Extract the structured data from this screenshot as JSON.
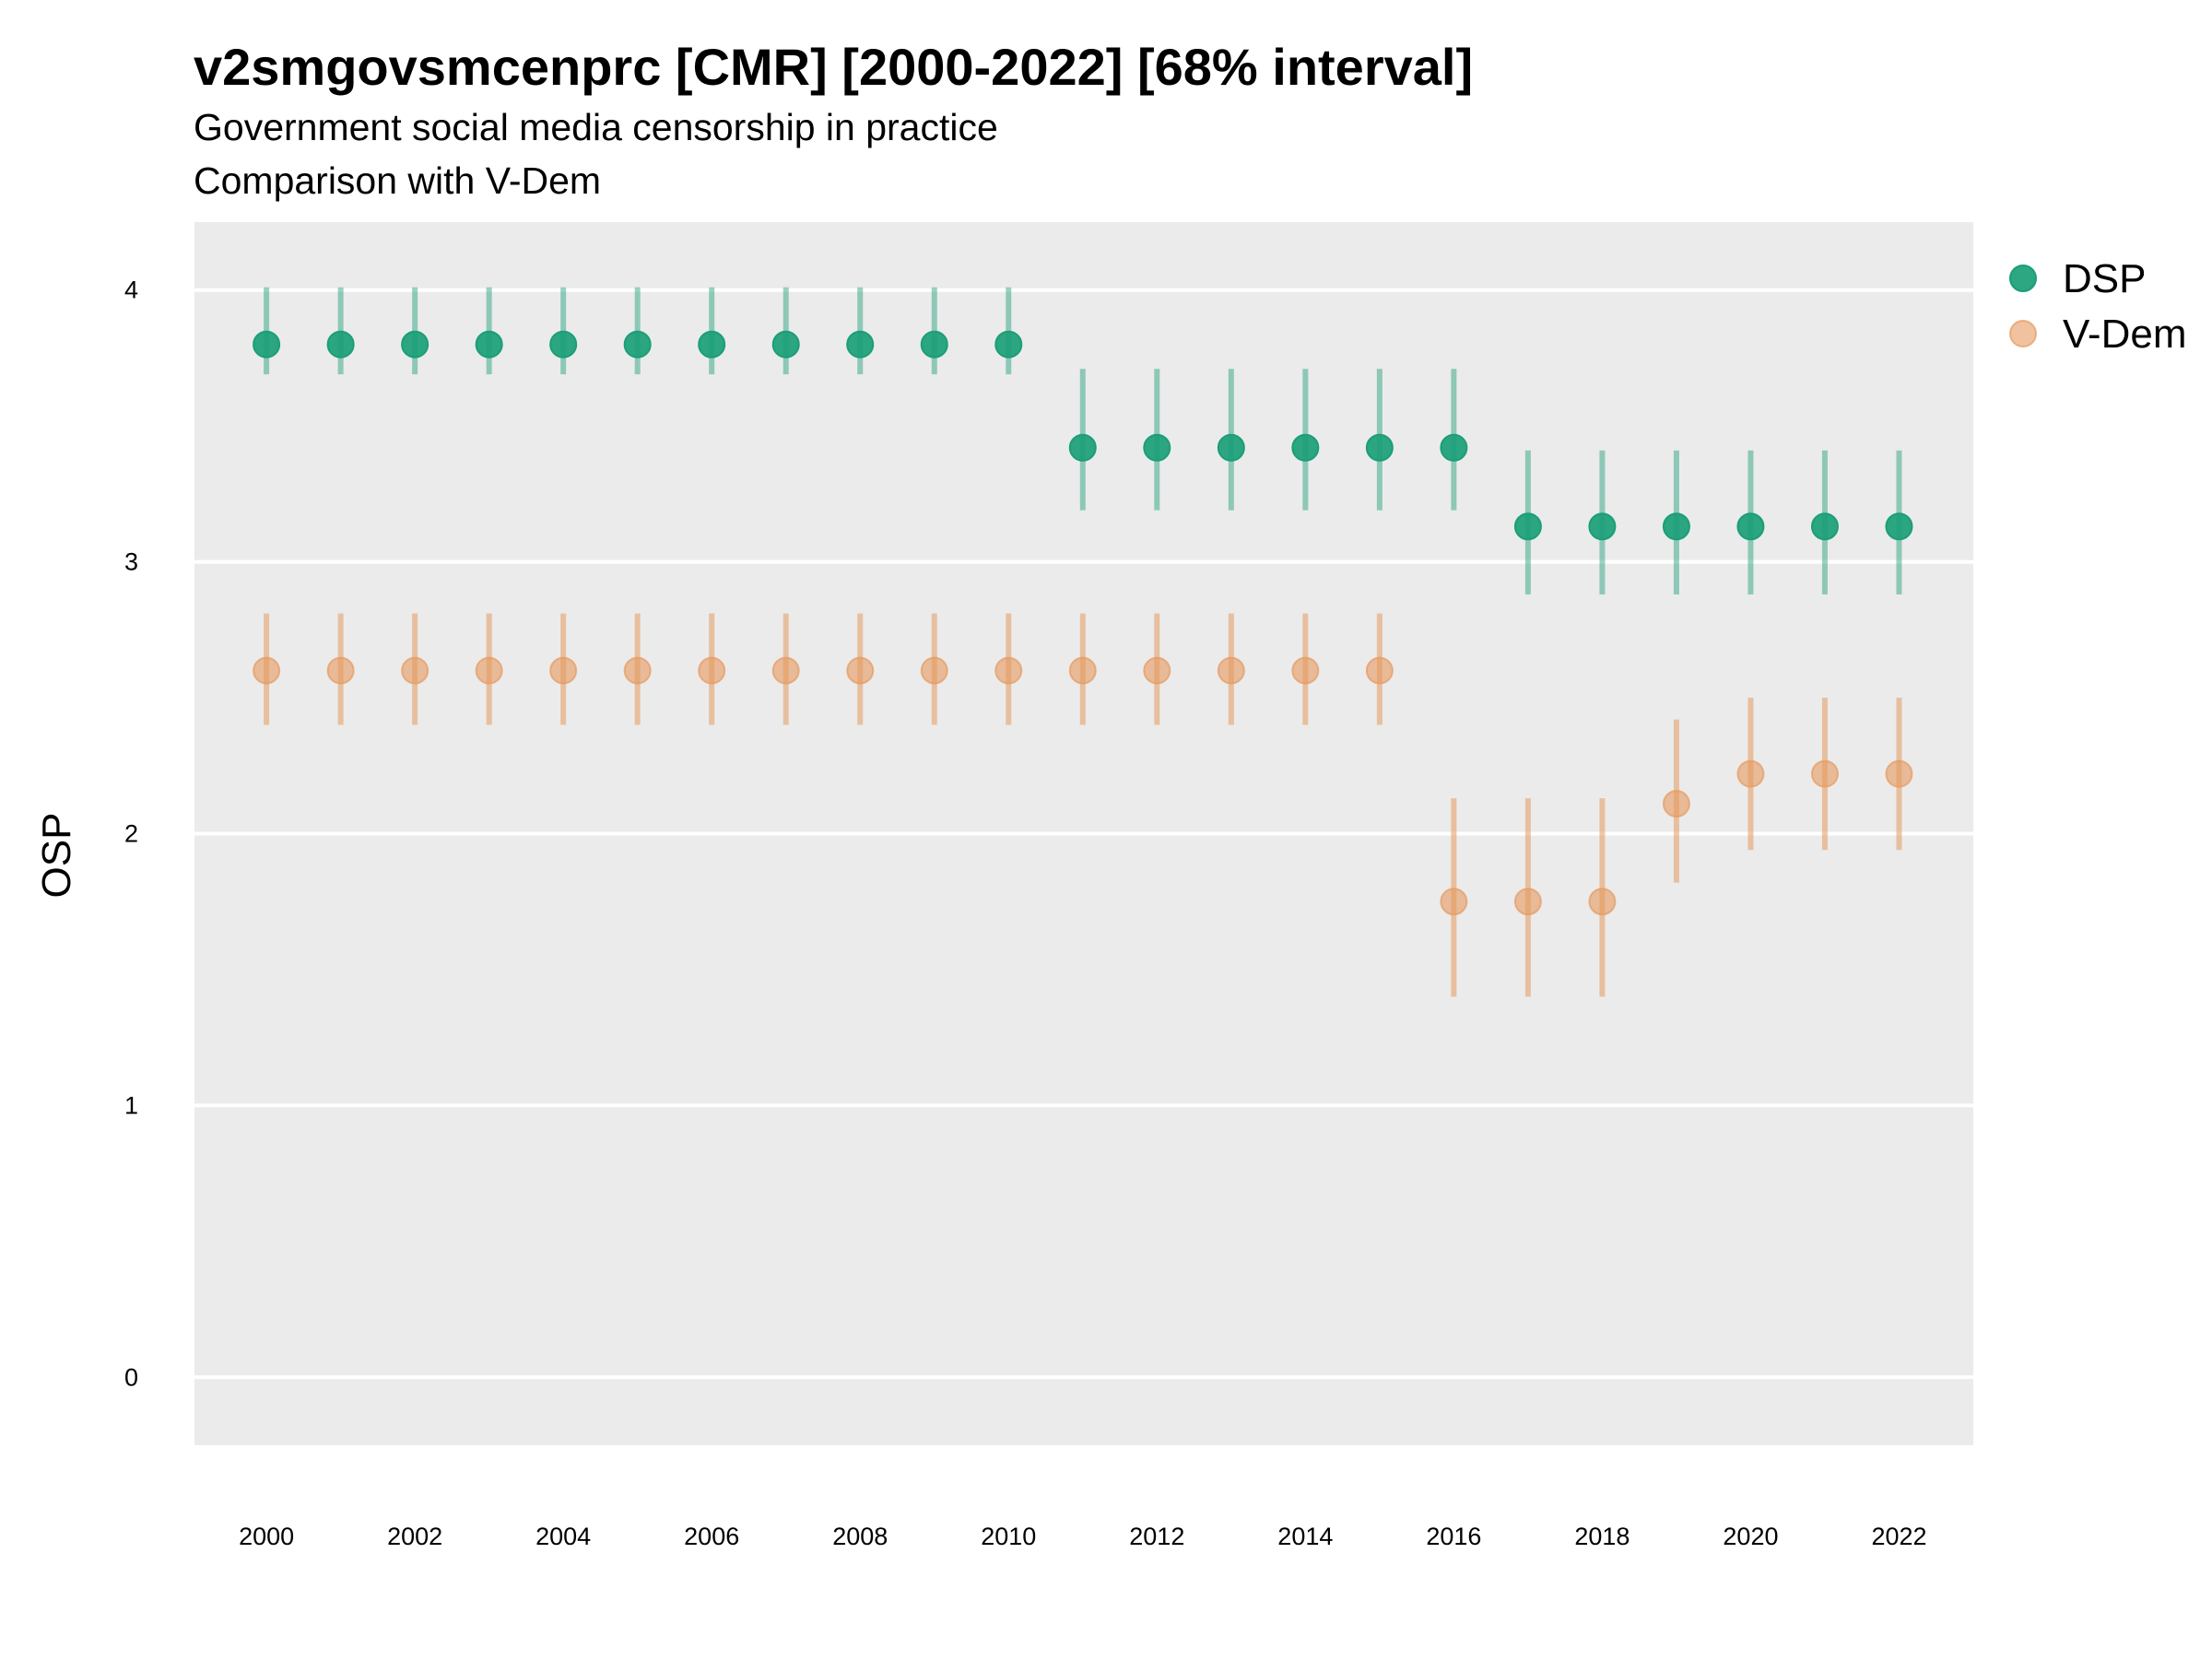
{
  "chart_data": {
    "type": "scatter",
    "title": "v2smgovsmcenprc [CMR] [2000-2022] [68% interval]",
    "subtitle_line1": "Government social media censorship in practice",
    "subtitle_line2": "Comparison with V-Dem",
    "xlabel": "",
    "ylabel": "OSP",
    "xlim": [
      1999.03,
      2023.0
    ],
    "ylim": [
      -0.25,
      4.25
    ],
    "x_ticks": [
      2000,
      2002,
      2004,
      2006,
      2008,
      2010,
      2012,
      2014,
      2016,
      2018,
      2020,
      2022
    ],
    "y_ticks": [
      0,
      1,
      2,
      3,
      4
    ],
    "grid": true,
    "legend_position": "right",
    "x": [
      2000,
      2001,
      2002,
      2003,
      2004,
      2005,
      2006,
      2007,
      2008,
      2009,
      2010,
      2011,
      2012,
      2013,
      2014,
      2015,
      2016,
      2017,
      2018,
      2019,
      2020,
      2021,
      2022
    ],
    "series": [
      {
        "name": "DSP",
        "color": "#1b9e77",
        "values": [
          3.8,
          3.8,
          3.8,
          3.8,
          3.8,
          3.8,
          3.8,
          3.8,
          3.8,
          3.8,
          3.8,
          3.42,
          3.42,
          3.42,
          3.42,
          3.42,
          3.42,
          3.13,
          3.13,
          3.13,
          3.13,
          3.13,
          3.13
        ],
        "lower": [
          3.69,
          3.69,
          3.69,
          3.69,
          3.69,
          3.69,
          3.69,
          3.69,
          3.69,
          3.69,
          3.69,
          3.19,
          3.19,
          3.19,
          3.19,
          3.19,
          3.19,
          2.88,
          2.88,
          2.88,
          2.88,
          2.88,
          2.88
        ],
        "upper": [
          4.01,
          4.01,
          4.01,
          4.01,
          4.01,
          4.01,
          4.01,
          4.01,
          4.01,
          4.01,
          4.01,
          3.71,
          3.71,
          3.71,
          3.71,
          3.71,
          3.71,
          3.41,
          3.41,
          3.41,
          3.41,
          3.41,
          3.41
        ]
      },
      {
        "name": "V-Dem",
        "color": "#e69a5f",
        "values": [
          2.6,
          2.6,
          2.6,
          2.6,
          2.6,
          2.6,
          2.6,
          2.6,
          2.6,
          2.6,
          2.6,
          2.6,
          2.6,
          2.6,
          2.6,
          2.6,
          1.75,
          1.75,
          1.75,
          2.11,
          2.22,
          2.22,
          2.22
        ],
        "lower": [
          2.4,
          2.4,
          2.4,
          2.4,
          2.4,
          2.4,
          2.4,
          2.4,
          2.4,
          2.4,
          2.4,
          2.4,
          2.4,
          2.4,
          2.4,
          2.4,
          1.4,
          1.4,
          1.4,
          1.82,
          1.94,
          1.94,
          1.94
        ],
        "upper": [
          2.81,
          2.81,
          2.81,
          2.81,
          2.81,
          2.81,
          2.81,
          2.81,
          2.81,
          2.81,
          2.81,
          2.81,
          2.81,
          2.81,
          2.81,
          2.81,
          2.13,
          2.13,
          2.13,
          2.42,
          2.5,
          2.5,
          2.5
        ]
      }
    ],
    "colors": {
      "panel_background": "#ebebeb",
      "gridline": "#ffffff",
      "text": "#000000"
    }
  }
}
